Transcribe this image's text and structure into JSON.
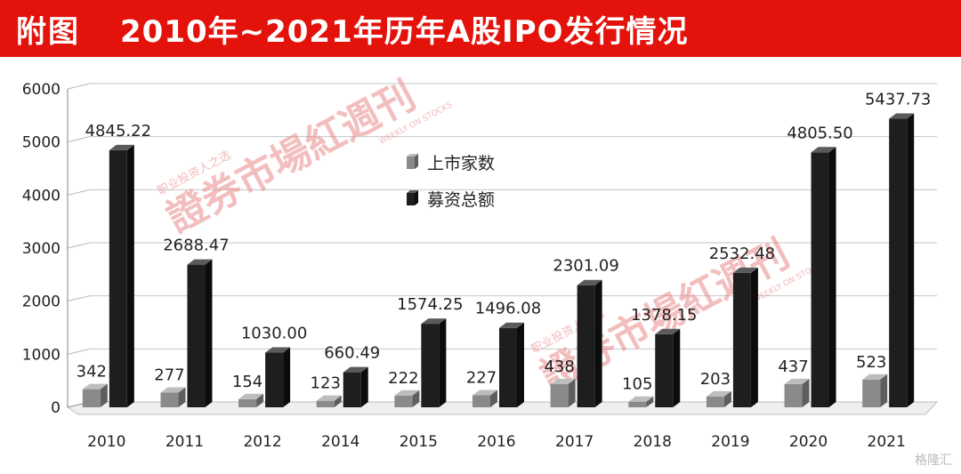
{
  "header": {
    "tag": "附图",
    "title": "2010年~2021年历年A股IPO发行情况",
    "color": "#e3120b"
  },
  "watermark": {
    "main": "證券市場紅週刊",
    "sub": "职业投资人之选",
    "en": "WEEKLY ON STOCKS"
  },
  "corner_logo": "格隆汇",
  "chart_data": {
    "type": "bar",
    "title": "",
    "xlabel": "",
    "ylabel": "",
    "ylim": [
      0,
      6000
    ],
    "yticks": [
      0,
      1000,
      2000,
      3000,
      4000,
      5000,
      6000
    ],
    "grid": true,
    "legend_position": "center",
    "categories": [
      "2010",
      "2011",
      "2012",
      "2014",
      "2015",
      "2016",
      "2017",
      "2018",
      "2019",
      "2020",
      "2021"
    ],
    "series": [
      {
        "name": "上市家数",
        "color": "#888888",
        "values": [
          342,
          277,
          154,
          123,
          222,
          227,
          438,
          105,
          203,
          437,
          523
        ],
        "labels": [
          "342",
          "277",
          "154",
          "123",
          "222",
          "227",
          "438",
          "105",
          "203",
          "437",
          "523"
        ]
      },
      {
        "name": "募资总额",
        "color": "#1e1e1e",
        "values": [
          4845.22,
          2688.47,
          1030.0,
          660.49,
          1574.25,
          1496.08,
          2301.09,
          1378.15,
          2532.48,
          4805.5,
          5437.73
        ],
        "labels": [
          "4845.22",
          "2688.47",
          "1030.00",
          "660.49",
          "1574.25",
          "1496.08",
          "2301.09",
          "1378.15",
          "2532.48",
          "4805.50",
          "5437.73"
        ]
      }
    ]
  }
}
